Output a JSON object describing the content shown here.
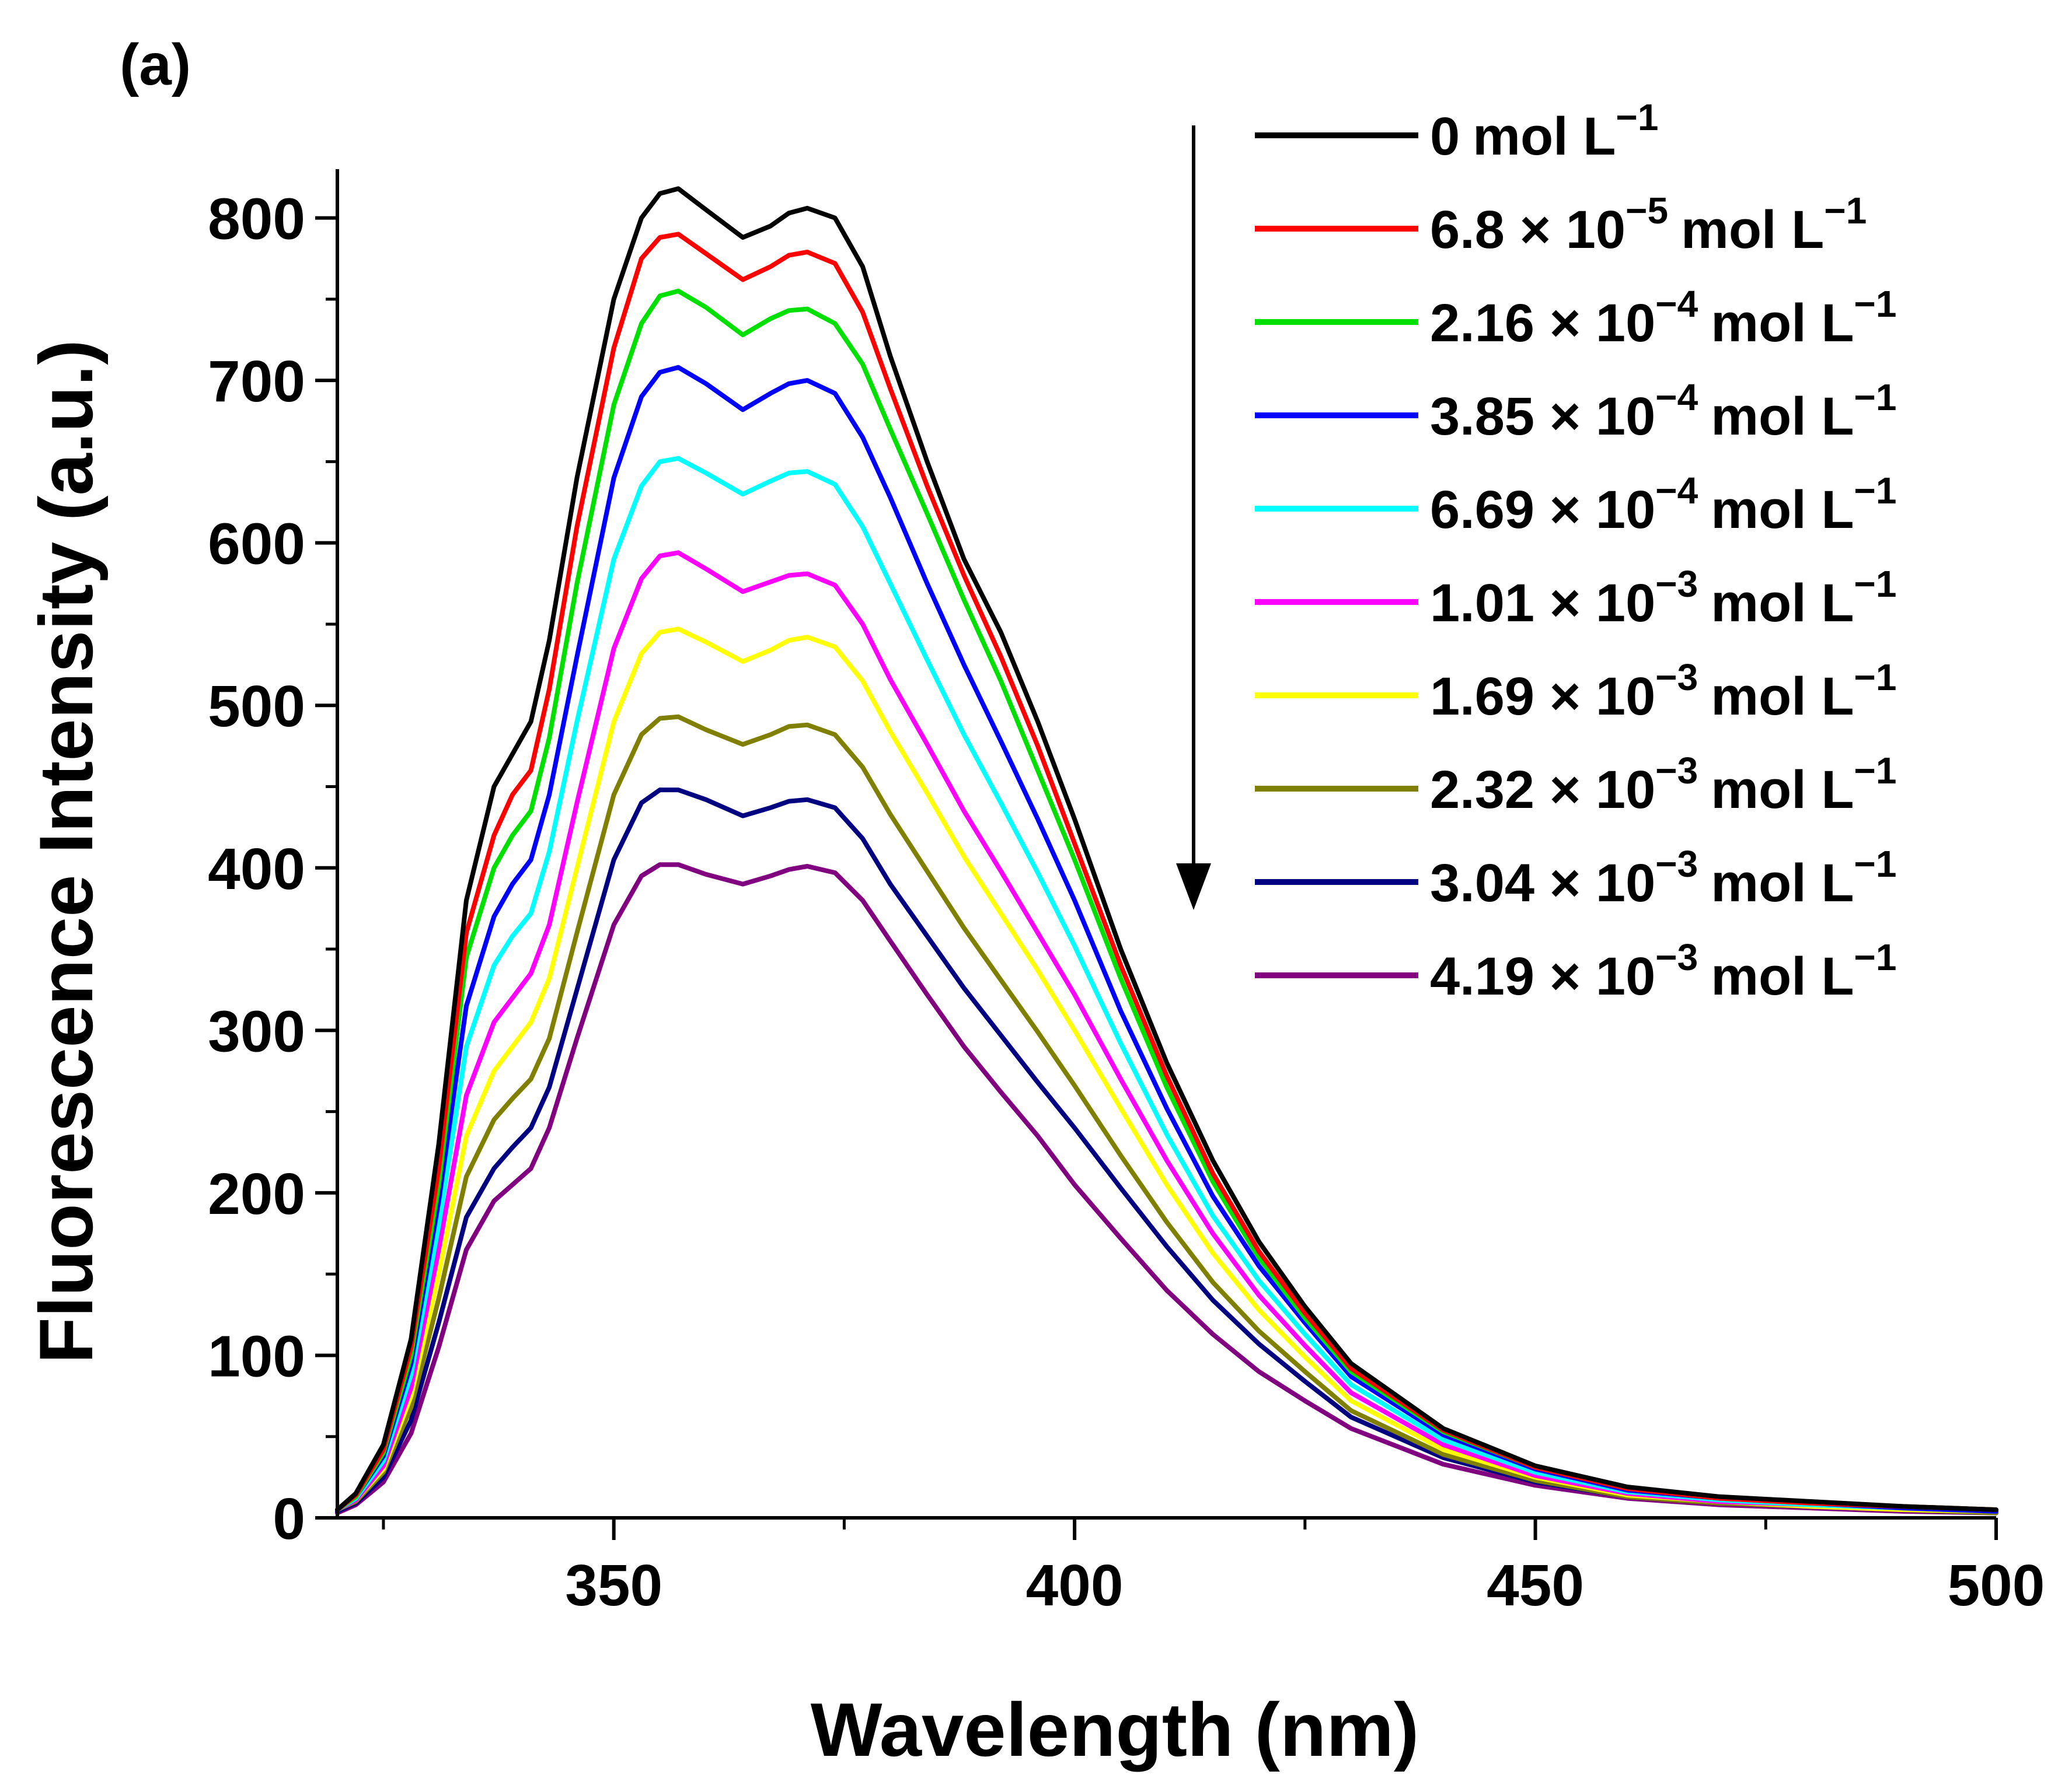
{
  "chart_data": {
    "type": "line",
    "panel_label": "(a)",
    "xlabel": "Wavelength (nm)",
    "ylabel": "Fluorescence Intensity (a.u.)",
    "xlim": [
      320,
      500
    ],
    "ylim": [
      0,
      830
    ],
    "xticks": [
      350,
      400,
      450,
      500
    ],
    "yticks": [
      0,
      100,
      200,
      300,
      400,
      500,
      600,
      700,
      800
    ],
    "x": [
      320,
      322,
      325,
      328,
      331,
      334,
      337,
      339,
      341,
      343,
      346,
      350,
      353,
      355,
      357,
      360,
      364,
      367,
      369,
      371,
      374,
      377,
      380,
      384,
      388,
      392,
      396,
      400,
      405,
      410,
      415,
      420,
      425,
      430,
      440,
      450,
      460,
      470,
      480,
      490,
      500
    ],
    "series": [
      {
        "name": "0 mol L⁻¹",
        "label": {
          "coef": "0",
          "exp": "",
          "unit": "mol L",
          "unit_exp": "−1"
        },
        "color": "#000000",
        "values": [
          5,
          15,
          45,
          110,
          230,
          380,
          450,
          470,
          490,
          540,
          640,
          750,
          800,
          815,
          818,
          805,
          788,
          795,
          803,
          806,
          800,
          770,
          715,
          650,
          590,
          545,
          490,
          430,
          350,
          280,
          220,
          170,
          130,
          95,
          55,
          32,
          19,
          13,
          10,
          7,
          5
        ]
      },
      {
        "name": "6.8 × 10⁻⁵ mol L⁻¹",
        "label": {
          "coef": "6.8  × 10",
          "exp": "−5",
          "unit": "mol L",
          "unit_exp": "−1"
        },
        "color": "#ff0000",
        "values": [
          5,
          14,
          42,
          105,
          215,
          360,
          420,
          445,
          460,
          510,
          610,
          720,
          775,
          788,
          790,
          778,
          762,
          770,
          777,
          779,
          772,
          742,
          695,
          635,
          580,
          530,
          475,
          415,
          340,
          272,
          212,
          164,
          126,
          92,
          54,
          31,
          18,
          12,
          9,
          7,
          5
        ]
      },
      {
        "name": "2.16 × 10⁻⁴ mol L⁻¹",
        "label": {
          "coef": "2.16 × 10",
          "exp": "−4",
          "unit": "mol L",
          "unit_exp": "−1"
        },
        "color": "#00e000",
        "values": [
          5,
          13,
          40,
          100,
          205,
          345,
          400,
          420,
          435,
          480,
          575,
          685,
          735,
          752,
          755,
          745,
          728,
          738,
          743,
          744,
          735,
          710,
          670,
          618,
          565,
          515,
          460,
          405,
          332,
          265,
          207,
          160,
          123,
          90,
          53,
          31,
          18,
          12,
          9,
          7,
          5
        ]
      },
      {
        "name": "3.85 × 10⁻⁴ mol L⁻¹",
        "label": {
          "coef": "3.85 × 10",
          "exp": "−4",
          "unit": "mol L",
          "unit_exp": "−1"
        },
        "color": "#0000ff",
        "values": [
          5,
          13,
          38,
          95,
          195,
          315,
          370,
          390,
          405,
          445,
          530,
          640,
          690,
          705,
          708,
          698,
          682,
          692,
          698,
          700,
          692,
          665,
          628,
          575,
          525,
          478,
          430,
          380,
          312,
          252,
          198,
          155,
          120,
          87,
          51,
          30,
          17,
          12,
          9,
          6,
          4
        ]
      },
      {
        "name": "6.69 × 10⁻⁴ mol L⁻¹",
        "label": {
          "coef": "6.69 × 10",
          "exp": "−4",
          "unit": "mol L",
          "unit_exp": "−1"
        },
        "color": "#00ffff",
        "values": [
          5,
          12,
          35,
          88,
          180,
          290,
          340,
          358,
          372,
          410,
          490,
          590,
          635,
          650,
          652,
          643,
          630,
          638,
          643,
          644,
          636,
          610,
          575,
          528,
          482,
          440,
          397,
          352,
          292,
          236,
          186,
          146,
          113,
          82,
          48,
          28,
          16,
          11,
          8,
          6,
          4
        ]
      },
      {
        "name": "1.01 × 10⁻³ mol L⁻¹",
        "label": {
          "coef": "1.01 × 10",
          "exp": "−3",
          "unit": "mol L",
          "unit_exp": "−1"
        },
        "color": "#ff00ff",
        "values": [
          5,
          11,
          32,
          80,
          165,
          260,
          305,
          320,
          335,
          365,
          440,
          535,
          578,
          592,
          594,
          584,
          570,
          576,
          580,
          581,
          574,
          550,
          516,
          476,
          435,
          398,
          360,
          322,
          270,
          220,
          175,
          137,
          106,
          77,
          45,
          26,
          15,
          10,
          8,
          6,
          4
        ]
      },
      {
        "name": "1.69 × 10⁻³ mol L⁻¹",
        "label": {
          "coef": "1.69 × 10",
          "exp": "−3",
          "unit": "mol L",
          "unit_exp": "−1"
        },
        "color": "#ffff00",
        "values": [
          5,
          11,
          30,
          75,
          150,
          235,
          275,
          290,
          305,
          332,
          400,
          490,
          532,
          545,
          547,
          539,
          527,
          534,
          540,
          542,
          536,
          515,
          484,
          446,
          407,
          372,
          337,
          300,
          252,
          205,
          163,
          128,
          99,
          72,
          42,
          25,
          14,
          10,
          7,
          5,
          4
        ]
      },
      {
        "name": "2.32 × 10⁻³ mol L⁻¹",
        "label": {
          "coef": "2.32 × 10",
          "exp": "−3",
          "unit": "mol L",
          "unit_exp": "−1"
        },
        "color": "#808000",
        "values": [
          5,
          10,
          28,
          68,
          135,
          210,
          245,
          258,
          270,
          295,
          360,
          445,
          482,
          492,
          493,
          485,
          476,
          482,
          487,
          488,
          482,
          462,
          433,
          398,
          363,
          331,
          299,
          266,
          223,
          182,
          145,
          115,
          90,
          66,
          39,
          23,
          13,
          9,
          7,
          5,
          3
        ]
      },
      {
        "name": "3.04 × 10⁻³ mol L⁻¹",
        "label": {
          "coef": "3.04 × 10",
          "exp": "−3",
          "unit": "mol L",
          "unit_exp": "−1"
        },
        "color": "#000080",
        "values": [
          4,
          9,
          25,
          60,
          120,
          185,
          215,
          228,
          240,
          265,
          325,
          405,
          440,
          448,
          448,
          442,
          432,
          437,
          441,
          442,
          437,
          418,
          390,
          358,
          326,
          297,
          268,
          240,
          203,
          167,
          134,
          107,
          84,
          62,
          37,
          22,
          13,
          9,
          7,
          5,
          3
        ]
      },
      {
        "name": "4.19 × 10⁻³ mol L⁻¹",
        "label": {
          "coef": "4.19 × 10",
          "exp": "−3",
          "unit": "mol L",
          "unit_exp": "−1"
        },
        "color": "#800080",
        "values": [
          3,
          8,
          22,
          52,
          105,
          165,
          195,
          205,
          215,
          240,
          295,
          365,
          395,
          402,
          402,
          396,
          390,
          395,
          399,
          401,
          397,
          380,
          355,
          322,
          290,
          262,
          235,
          205,
          172,
          140,
          113,
          90,
          72,
          55,
          33,
          20,
          12,
          8,
          6,
          4,
          3
        ]
      }
    ]
  }
}
